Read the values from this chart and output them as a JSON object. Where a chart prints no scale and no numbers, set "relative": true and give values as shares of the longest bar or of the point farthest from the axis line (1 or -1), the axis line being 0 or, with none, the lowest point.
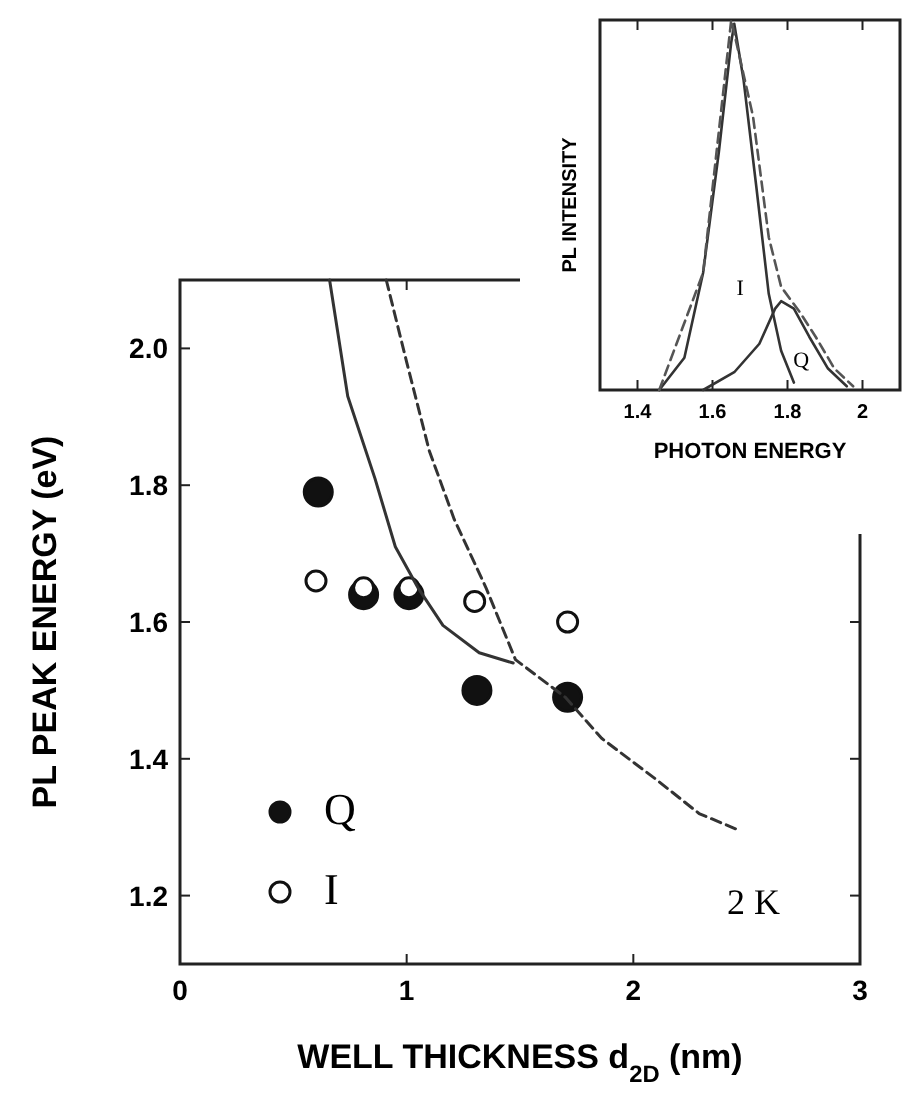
{
  "chart_data": [
    {
      "type": "scatter",
      "xlabel": "WELL THICKNESS d$_{2D}$ (nm)",
      "ylabel": "PL PEAK ENERGY (eV)",
      "xlim": [
        0,
        3
      ],
      "ylim": [
        1.1,
        2.1
      ],
      "xticks": [
        0,
        1,
        2,
        3
      ],
      "yticks": [
        1.2,
        1.4,
        1.6,
        1.8,
        {
          "value": 2,
          "label": "2.0"
        }
      ],
      "legend": "bottom left",
      "marker": "circle",
      "grid": false,
      "annotations": [
        "2 K"
      ],
      "series": [
        {
          "name": "Q",
          "color": "#111111",
          "x": [
            0.61,
            0.81,
            1.01,
            1.31,
            1.71
          ],
          "values": [
            1.79,
            1.64,
            1.64,
            1.5,
            1.49
          ]
        },
        {
          "name": "I",
          "color": "#ffffff",
          "x": [
            0.6,
            0.81,
            1.01,
            1.3,
            1.71
          ],
          "values": [
            1.66,
            1.65,
            1.65,
            1.63,
            1.6
          ]
        },
        {
          "type": "line",
          "color": "#333333",
          "line_style": "solid",
          "marker": "none",
          "x": [
            0.66,
            0.74,
            0.86,
            0.95,
            1.05,
            1.16,
            1.32,
            1.47
          ],
          "values": [
            2.1,
            1.93,
            1.81,
            1.71,
            1.65,
            1.595,
            1.555,
            1.54
          ]
        },
        {
          "type": "line",
          "color": "#333333",
          "line_style": "dashed",
          "marker": "none",
          "x": [
            0.91,
            1.0,
            1.1,
            1.21,
            1.35,
            1.48,
            1.7,
            1.86,
            2.1,
            2.29,
            2.47
          ],
          "values": [
            2.1,
            1.98,
            1.85,
            1.75,
            1.65,
            1.545,
            1.49,
            1.43,
            1.37,
            1.32,
            1.295
          ]
        }
      ]
    },
    {
      "type": "line",
      "relative": true,
      "xlabel": "PHOTON ENERGY",
      "ylabel": "PL INTENSITY",
      "xlim": [
        1.3,
        2.1
      ],
      "xticks": [
        1.4,
        1.6,
        1.8,
        2
      ],
      "legend": false,
      "marker": "none",
      "series": [
        {
          "name": "I",
          "color": "#333333",
          "line_style": "solid",
          "x": [
            1.458,
            1.525,
            1.575,
            1.617,
            1.65,
            1.658,
            1.683,
            1.717,
            1.75,
            1.783,
            1.817
          ],
          "values": [
            0,
            0.087,
            0.317,
            0.644,
            0.94,
            0.99,
            0.837,
            0.548,
            0.26,
            0.106,
            0.02
          ]
        },
        {
          "name": "Q",
          "color": "#333333",
          "line_style": "solid",
          "x": [
            1.575,
            1.658,
            1.725,
            1.767,
            1.783,
            1.817,
            1.858,
            1.908,
            1.958
          ],
          "values": [
            0,
            0.048,
            0.125,
            0.22,
            0.24,
            0.22,
            0.144,
            0.058,
            0.01
          ]
        },
        {
          "color": "#555555",
          "line_style": "dashed",
          "x": [
            1.458,
            1.575,
            1.65,
            1.708,
            1.75,
            1.783,
            1.833,
            1.875,
            1.925,
            1.975
          ],
          "values": [
            0,
            0.317,
            1.0,
            0.74,
            0.413,
            0.279,
            0.21,
            0.144,
            0.058,
            0.01
          ]
        }
      ]
    }
  ]
}
